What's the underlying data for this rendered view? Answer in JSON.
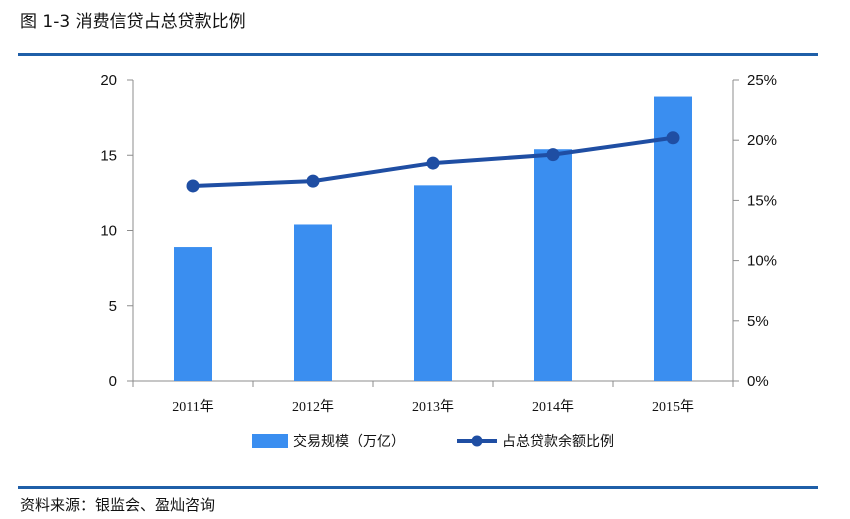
{
  "figure": {
    "title": "图 1-3  消费信贷占总贷款比例",
    "source": "资料来源：银监会、盈灿咨询"
  },
  "colors": {
    "bar": "#3a8ef0",
    "line": "#1f4ea3",
    "rule": "#1f5fa8",
    "axis": "#8c8c8c"
  },
  "chart_data": {
    "type": "bar+line",
    "categories": [
      "2011年",
      "2012年",
      "2013年",
      "2014年",
      "2015年"
    ],
    "series": [
      {
        "name": "交易规模（万亿）",
        "type": "bar",
        "axis": "left",
        "values": [
          8.9,
          10.4,
          13.0,
          15.4,
          18.9
        ]
      },
      {
        "name": "占总贷款余额比例",
        "type": "line",
        "axis": "right",
        "values": [
          16.2,
          16.6,
          18.1,
          18.8,
          20.2
        ]
      }
    ],
    "y_left": {
      "ylim": [
        0,
        20
      ],
      "ticks": [
        "0",
        "5",
        "10",
        "15",
        "20"
      ]
    },
    "y_right": {
      "ylim": [
        0,
        25
      ],
      "ticks": [
        "0%",
        "5%",
        "10%",
        "15%",
        "20%",
        "25%"
      ]
    },
    "grid": false,
    "legend": "bottom"
  }
}
